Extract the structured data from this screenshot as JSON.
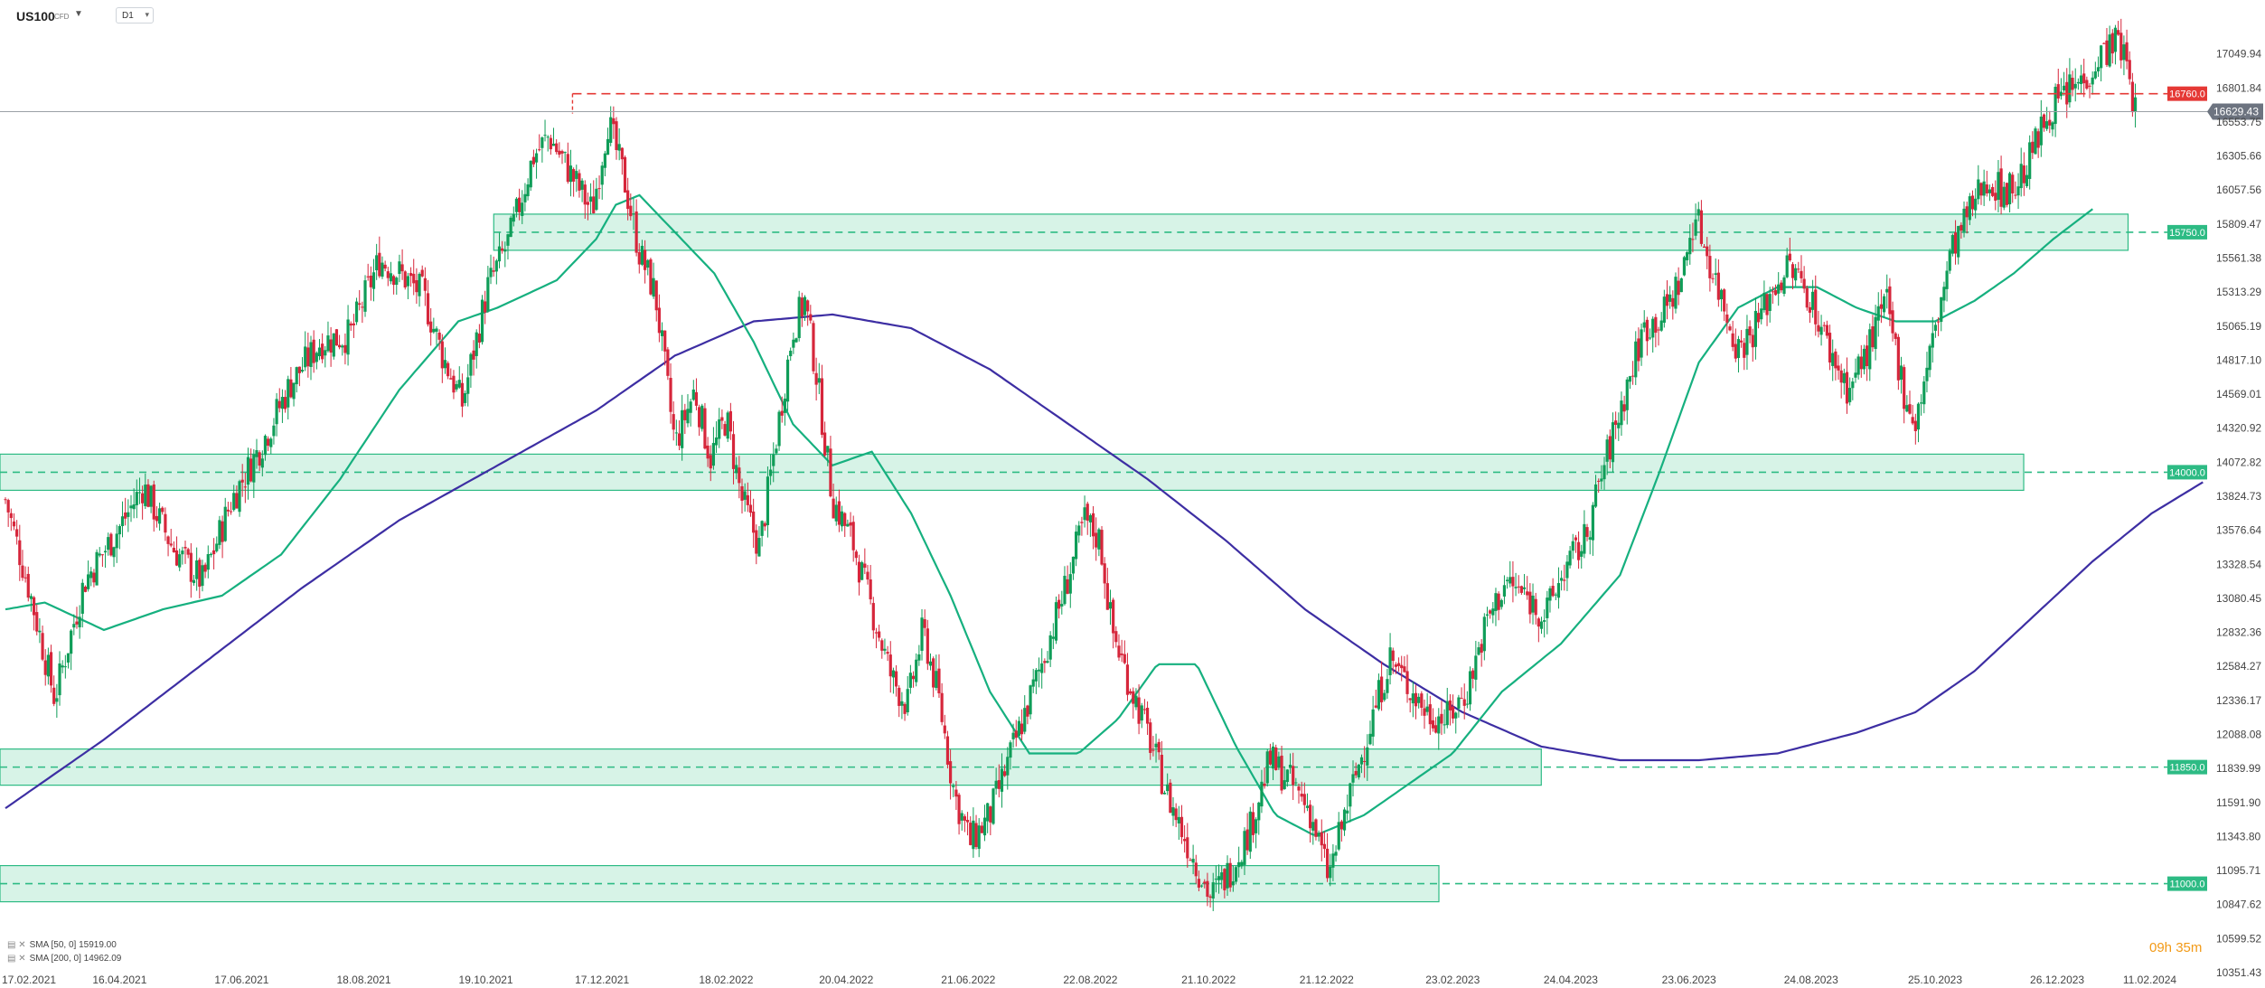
{
  "header": {
    "symbol": "US100",
    "symbol_type": "CFD",
    "timeframe": "D1"
  },
  "legend": [
    {
      "label": "SMA [50, 0] 15919.00",
      "color": "#16b07f"
    },
    {
      "label": "SMA [200, 0] 14962.09",
      "color": "#3d2ea3"
    }
  ],
  "timer": "09h 35m",
  "chart_data": {
    "type": "candlestick",
    "ylim": [
      10351.43,
      17298.13
    ],
    "y_ticks": [
      17049.94,
      16801.84,
      16553.75,
      16305.66,
      16057.56,
      15809.47,
      15561.38,
      15313.29,
      15065.19,
      14817.1,
      14569.01,
      14320.92,
      14072.82,
      13824.73,
      13576.64,
      13328.54,
      13080.45,
      12832.36,
      12584.27,
      12336.17,
      12088.08,
      11839.99,
      11591.9,
      11343.8,
      11095.71,
      10847.62,
      10599.52,
      10351.43
    ],
    "x_ticks": [
      "17.02.2021",
      "16.04.2021",
      "17.06.2021",
      "18.08.2021",
      "19.10.2021",
      "17.12.2021",
      "18.02.2022",
      "20.04.2022",
      "21.06.2022",
      "22.08.2022",
      "21.10.2022",
      "21.12.2022",
      "23.02.2023",
      "24.04.2023",
      "23.06.2023",
      "24.08.2023",
      "25.10.2023",
      "26.12.2023",
      "11.02.2024"
    ],
    "x_tick_positions_days": [
      0,
      58,
      120,
      182,
      244,
      303,
      366,
      427,
      489,
      551,
      611,
      671,
      735,
      795,
      855,
      917,
      980,
      1042,
      1089
    ],
    "x_range_days": [
      0,
      1120
    ],
    "price_path": [
      [
        0,
        13800
      ],
      [
        12,
        13150
      ],
      [
        25,
        12350
      ],
      [
        40,
        13200
      ],
      [
        58,
        13600
      ],
      [
        70,
        13900
      ],
      [
        85,
        13450
      ],
      [
        100,
        13200
      ],
      [
        115,
        13800
      ],
      [
        130,
        14200
      ],
      [
        145,
        14650
      ],
      [
        160,
        14950
      ],
      [
        175,
        15000
      ],
      [
        190,
        15550
      ],
      [
        200,
        15450
      ],
      [
        212,
        15300
      ],
      [
        222,
        14850
      ],
      [
        232,
        14500
      ],
      [
        245,
        15350
      ],
      [
        256,
        15700
      ],
      [
        268,
        16300
      ],
      [
        276,
        16450
      ],
      [
        283,
        16280
      ],
      [
        290,
        16100
      ],
      [
        298,
        15900
      ],
      [
        306,
        16560
      ],
      [
        314,
        16150
      ],
      [
        322,
        15600
      ],
      [
        330,
        15300
      ],
      [
        340,
        14200
      ],
      [
        350,
        14600
      ],
      [
        358,
        14100
      ],
      [
        366,
        14400
      ],
      [
        374,
        13800
      ],
      [
        383,
        13450
      ],
      [
        392,
        14300
      ],
      [
        400,
        15050
      ],
      [
        406,
        15250
      ],
      [
        412,
        14700
      ],
      [
        420,
        13800
      ],
      [
        430,
        13500
      ],
      [
        440,
        13000
      ],
      [
        450,
        12500
      ],
      [
        458,
        12300
      ],
      [
        466,
        12850
      ],
      [
        474,
        12350
      ],
      [
        482,
        11650
      ],
      [
        490,
        11300
      ],
      [
        500,
        11500
      ],
      [
        512,
        12000
      ],
      [
        525,
        12550
      ],
      [
        537,
        13100
      ],
      [
        548,
        13650
      ],
      [
        556,
        13500
      ],
      [
        562,
        12850
      ],
      [
        570,
        12500
      ],
      [
        580,
        12100
      ],
      [
        590,
        11650
      ],
      [
        600,
        11300
      ],
      [
        612,
        10900
      ],
      [
        622,
        11100
      ],
      [
        632,
        11400
      ],
      [
        642,
        11900
      ],
      [
        652,
        11750
      ],
      [
        662,
        11550
      ],
      [
        672,
        11050
      ],
      [
        682,
        11600
      ],
      [
        692,
        12100
      ],
      [
        703,
        12650
      ],
      [
        712,
        12450
      ],
      [
        722,
        12250
      ],
      [
        732,
        12200
      ],
      [
        742,
        12400
      ],
      [
        752,
        12900
      ],
      [
        762,
        13200
      ],
      [
        772,
        13100
      ],
      [
        782,
        12950
      ],
      [
        792,
        13300
      ],
      [
        802,
        13500
      ],
      [
        812,
        14050
      ],
      [
        822,
        14550
      ],
      [
        832,
        15050
      ],
      [
        842,
        15150
      ],
      [
        852,
        15450
      ],
      [
        858,
        15900
      ],
      [
        864,
        15600
      ],
      [
        872,
        15250
      ],
      [
        880,
        14900
      ],
      [
        888,
        15050
      ],
      [
        898,
        15350
      ],
      [
        906,
        15500
      ],
      [
        916,
        15300
      ],
      [
        926,
        14900
      ],
      [
        936,
        14600
      ],
      [
        946,
        14900
      ],
      [
        955,
        15250
      ],
      [
        964,
        14600
      ],
      [
        970,
        14350
      ],
      [
        978,
        14900
      ],
      [
        988,
        15600
      ],
      [
        996,
        15850
      ],
      [
        1006,
        16150
      ],
      [
        1014,
        16050
      ],
      [
        1022,
        16100
      ],
      [
        1030,
        16350
      ],
      [
        1038,
        16650
      ],
      [
        1046,
        16750
      ],
      [
        1054,
        16850
      ],
      [
        1062,
        17000
      ],
      [
        1070,
        17150
      ],
      [
        1076,
        17060
      ],
      [
        1082,
        16620
      ]
    ],
    "sma50_path": [
      [
        0,
        13000
      ],
      [
        20,
        13050
      ],
      [
        50,
        12850
      ],
      [
        80,
        13000
      ],
      [
        110,
        13100
      ],
      [
        140,
        13400
      ],
      [
        170,
        13950
      ],
      [
        200,
        14600
      ],
      [
        230,
        15100
      ],
      [
        250,
        15200
      ],
      [
        280,
        15400
      ],
      [
        300,
        15700
      ],
      [
        310,
        15950
      ],
      [
        322,
        16020
      ],
      [
        340,
        15750
      ],
      [
        360,
        15450
      ],
      [
        380,
        14950
      ],
      [
        400,
        14350
      ],
      [
        420,
        14050
      ],
      [
        440,
        14150
      ],
      [
        460,
        13700
      ],
      [
        480,
        13100
      ],
      [
        500,
        12400
      ],
      [
        520,
        11950
      ],
      [
        545,
        11950
      ],
      [
        565,
        12200
      ],
      [
        585,
        12600
      ],
      [
        605,
        12600
      ],
      [
        625,
        12000
      ],
      [
        645,
        11500
      ],
      [
        665,
        11350
      ],
      [
        690,
        11500
      ],
      [
        710,
        11700
      ],
      [
        735,
        11950
      ],
      [
        760,
        12400
      ],
      [
        790,
        12750
      ],
      [
        820,
        13250
      ],
      [
        840,
        14000
      ],
      [
        860,
        14800
      ],
      [
        880,
        15200
      ],
      [
        900,
        15350
      ],
      [
        920,
        15350
      ],
      [
        940,
        15200
      ],
      [
        960,
        15100
      ],
      [
        980,
        15100
      ],
      [
        1000,
        15250
      ],
      [
        1020,
        15450
      ],
      [
        1040,
        15700
      ],
      [
        1060,
        15919
      ]
    ],
    "sma200_path": [
      [
        0,
        11550
      ],
      [
        50,
        12050
      ],
      [
        100,
        12600
      ],
      [
        150,
        13150
      ],
      [
        200,
        13650
      ],
      [
        250,
        14050
      ],
      [
        300,
        14450
      ],
      [
        340,
        14850
      ],
      [
        380,
        15100
      ],
      [
        420,
        15150
      ],
      [
        460,
        15050
      ],
      [
        500,
        14750
      ],
      [
        540,
        14350
      ],
      [
        580,
        13950
      ],
      [
        620,
        13500
      ],
      [
        660,
        13000
      ],
      [
        700,
        12600
      ],
      [
        740,
        12250
      ],
      [
        780,
        12000
      ],
      [
        820,
        11900
      ],
      [
        860,
        11900
      ],
      [
        900,
        11950
      ],
      [
        940,
        12100
      ],
      [
        970,
        12250
      ],
      [
        1000,
        12550
      ],
      [
        1030,
        12950
      ],
      [
        1060,
        13350
      ],
      [
        1090,
        13700
      ],
      [
        1130,
        14050
      ],
      [
        1170,
        14400
      ],
      [
        1200,
        14650
      ],
      [
        1230,
        14962
      ]
    ],
    "zones": [
      {
        "price": 15750,
        "label": "15750.0",
        "start_day": 248,
        "end_day": 1078
      },
      {
        "price": 14000,
        "label": "14000.0",
        "start_day": 0,
        "end_day": 1025
      },
      {
        "price": 11850,
        "label": "11850.0",
        "start_day": 0,
        "end_day": 780
      },
      {
        "price": 11000,
        "label": "11000.0",
        "start_day": 0,
        "end_day": 728
      }
    ],
    "resistance": {
      "price": 16760,
      "label": "16760.0",
      "start_day": 288
    },
    "last_price": {
      "price": 16629.43,
      "label": "16629.43"
    },
    "colors": {
      "up": "#0f9d58",
      "down": "#d6263b",
      "zone_fill": "#c9efdf",
      "zone_line": "#2dbb84",
      "resistance": "#e53935",
      "sma50": "#16b07f",
      "sma200": "#3d2ea3",
      "axis_text": "#444444",
      "last_price_bg": "#6d7480"
    }
  }
}
